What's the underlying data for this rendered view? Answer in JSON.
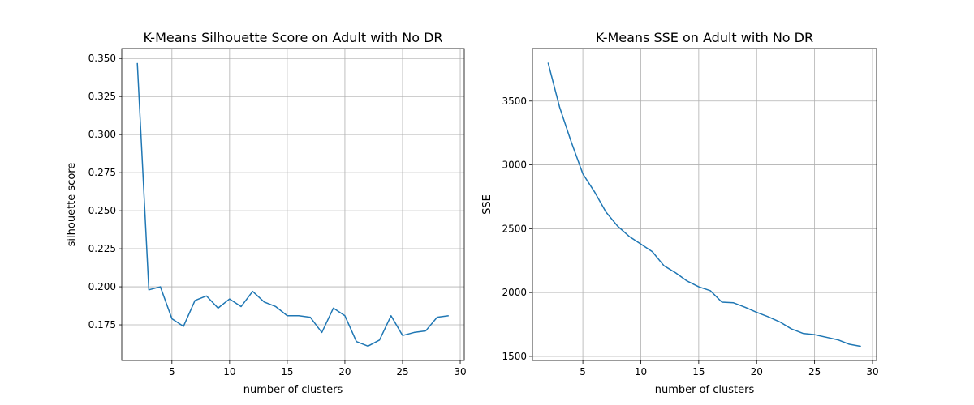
{
  "colors": {
    "series": "#1f77b4",
    "grid": "#b0b0b0"
  },
  "chart_data": [
    {
      "type": "line",
      "title": "K-Means Silhouette Score on Adult with No DR",
      "xlabel": "number of clusters",
      "ylabel": "silhouette score",
      "grid": true,
      "xlim": [
        0.65,
        30.35
      ],
      "ylim": [
        0.1516,
        0.3565
      ],
      "xticks": [
        5,
        10,
        15,
        20,
        25,
        30
      ],
      "yticks": [
        0.175,
        0.2,
        0.225,
        0.25,
        0.275,
        0.3,
        0.325,
        0.35
      ],
      "ytick_labels": [
        "0.175",
        "0.200",
        "0.225",
        "0.250",
        "0.275",
        "0.300",
        "0.325",
        "0.350"
      ],
      "x": [
        2,
        3,
        4,
        5,
        6,
        7,
        8,
        9,
        10,
        11,
        12,
        13,
        14,
        15,
        16,
        17,
        18,
        19,
        20,
        21,
        22,
        23,
        24,
        25,
        26,
        27,
        28,
        29
      ],
      "y": [
        0.347,
        0.198,
        0.2,
        0.179,
        0.174,
        0.191,
        0.194,
        0.186,
        0.192,
        0.187,
        0.197,
        0.19,
        0.187,
        0.181,
        0.181,
        0.18,
        0.17,
        0.186,
        0.181,
        0.164,
        0.161,
        0.165,
        0.181,
        0.168,
        0.17,
        0.171,
        0.18,
        0.181
      ]
    },
    {
      "type": "line",
      "title": "K-Means SSE on Adult with No DR",
      "xlabel": "number of clusters",
      "ylabel": "SSE",
      "grid": true,
      "xlim": [
        0.65,
        30.35
      ],
      "ylim": [
        1468,
        3911
      ],
      "xticks": [
        5,
        10,
        15,
        20,
        25,
        30
      ],
      "yticks": [
        1500,
        2000,
        2500,
        3000,
        3500
      ],
      "ytick_labels": [
        "1500",
        "2000",
        "2500",
        "3000",
        "3500"
      ],
      "x": [
        2,
        3,
        4,
        5,
        6,
        7,
        8,
        9,
        10,
        11,
        12,
        13,
        14,
        15,
        16,
        17,
        18,
        19,
        20,
        21,
        22,
        23,
        24,
        25,
        26,
        27,
        28,
        29
      ],
      "y": [
        3800,
        3450,
        3180,
        2930,
        2790,
        2630,
        2520,
        2440,
        2380,
        2320,
        2210,
        2155,
        2090,
        2045,
        2015,
        1925,
        1920,
        1885,
        1845,
        1810,
        1770,
        1715,
        1680,
        1670,
        1650,
        1630,
        1595,
        1578
      ]
    }
  ]
}
